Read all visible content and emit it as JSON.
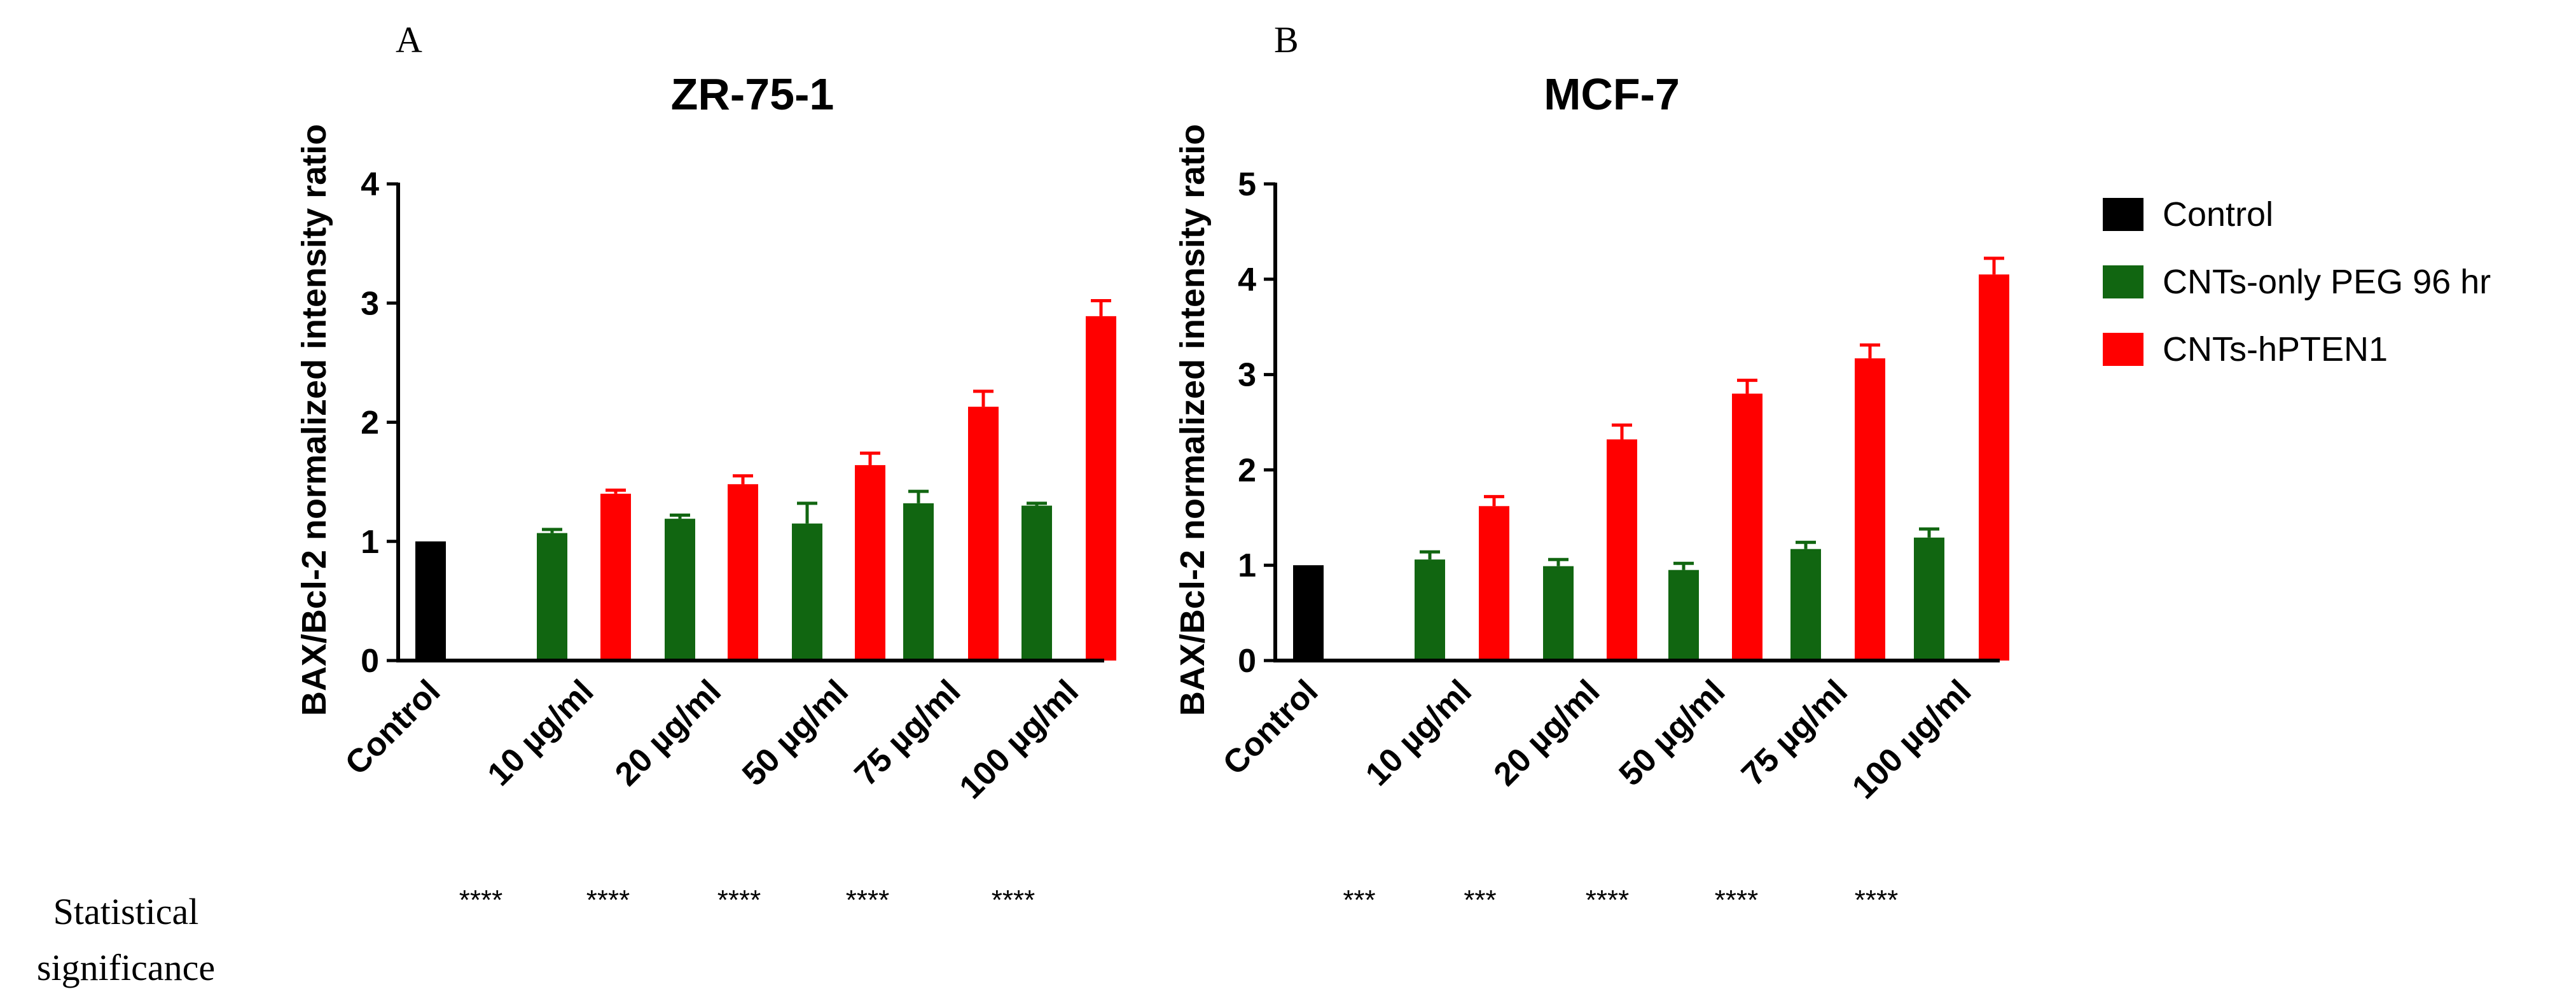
{
  "colors": {
    "control": "#000000",
    "cnts_only": "#116611",
    "cnts_hpten1": "#ff0000"
  },
  "statistics": {
    "label_line1": "Statistical",
    "label_line2": "significance"
  },
  "legend": [
    {
      "name": "Control",
      "color_key": "control"
    },
    {
      "name": "CNTs-only PEG 96 hr",
      "color_key": "cnts_only"
    },
    {
      "name": "CNTs-hPTEN1",
      "color_key": "cnts_hpten1"
    }
  ],
  "chart_data": [
    {
      "panel": "A",
      "type": "bar",
      "title": "ZR-75-1",
      "ylabel": "BAX/Bcl-2 normalized intensity ratio",
      "xlabel": "",
      "ylim": [
        0,
        4
      ],
      "yticks": [
        "0",
        "1",
        "2",
        "3",
        "4"
      ],
      "categories": [
        "Control",
        "10 µg/ml",
        "20 µg/ml",
        "50 µg/ml",
        "75 µg/ml",
        "100 µg/ml"
      ],
      "series": [
        {
          "name": "Control",
          "values": [
            1.0,
            null,
            null,
            null,
            null,
            null
          ],
          "errors": [
            0,
            null,
            null,
            null,
            null,
            null
          ]
        },
        {
          "name": "CNTs-only PEG 96 hr",
          "values": [
            null,
            1.07,
            1.19,
            1.15,
            1.32,
            1.3
          ],
          "errors": [
            null,
            0.03,
            0.03,
            0.17,
            0.1,
            0.02
          ]
        },
        {
          "name": "CNTs-hPTEN1",
          "values": [
            null,
            1.4,
            1.48,
            1.64,
            2.13,
            2.89
          ],
          "errors": [
            null,
            0.03,
            0.07,
            0.1,
            0.13,
            0.13
          ]
        }
      ],
      "significance": [
        "****",
        "****",
        "****",
        "****",
        "****"
      ]
    },
    {
      "panel": "B",
      "type": "bar",
      "title": "MCF-7",
      "ylabel": "BAX/Bcl-2 normalized intensity ratio",
      "xlabel": "",
      "ylim": [
        0,
        5
      ],
      "yticks": [
        "0",
        "1",
        "2",
        "3",
        "4",
        "5"
      ],
      "categories": [
        "Control",
        "10 µg/ml",
        "20 µg/ml",
        "50 µg/ml",
        "75 µg/ml",
        "100 µg/ml"
      ],
      "series": [
        {
          "name": "Control",
          "values": [
            1.0,
            null,
            null,
            null,
            null,
            null
          ],
          "errors": [
            0,
            null,
            null,
            null,
            null,
            null
          ]
        },
        {
          "name": "CNTs-only PEG 96 hr",
          "values": [
            null,
            1.06,
            0.99,
            0.95,
            1.17,
            1.29
          ],
          "errors": [
            null,
            0.08,
            0.07,
            0.07,
            0.07,
            0.09
          ]
        },
        {
          "name": "CNTs-hPTEN1",
          "values": [
            null,
            1.62,
            2.32,
            2.8,
            3.17,
            4.05
          ],
          "errors": [
            null,
            0.1,
            0.15,
            0.14,
            0.14,
            0.17
          ]
        }
      ],
      "significance": [
        "***",
        "***",
        "****",
        "****",
        "****"
      ]
    }
  ]
}
